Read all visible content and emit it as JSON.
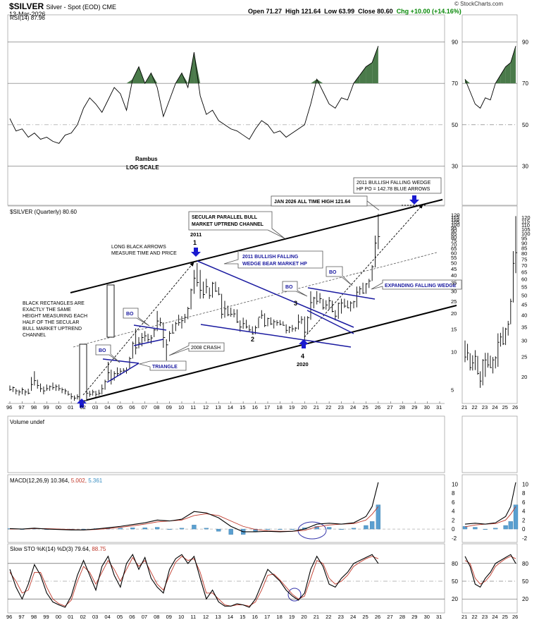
{
  "header": {
    "symbol": "$SILVER",
    "description": "Silver - Spot (EOD) CME",
    "date": "13-Mar-2026",
    "open": "Open 71.27",
    "high": "High 121.64",
    "low": "Low 63.99",
    "close": "Close 80.60",
    "chg": "Chg +10.00 (+14.16%)",
    "brand": "© StockCharts.com"
  },
  "chart_data": [
    {
      "type": "line",
      "panel": "rsi",
      "label": "RSI(14) 87.96",
      "ylim": [
        20,
        100
      ],
      "y_ticks": [
        30,
        50,
        70,
        90
      ],
      "x": [
        96,
        96.5,
        97,
        97.5,
        98,
        98.5,
        99,
        99.5,
        100,
        100.5,
        101,
        101.5,
        102,
        102.5,
        103,
        103.5,
        104,
        104.5,
        105,
        105.5,
        106,
        106.5,
        107,
        107.5,
        108,
        108.5,
        109,
        109.5,
        110,
        110.5,
        111,
        111.5,
        112,
        112.5,
        113,
        113.5,
        114,
        114.5,
        115,
        115.5,
        116,
        116.5,
        117,
        117.5,
        118,
        118.5,
        119,
        119.5,
        120,
        120.5,
        121,
        121.5,
        122,
        122.5,
        123,
        123.5,
        124,
        124.5,
        125,
        125.5,
        126
      ],
      "values": [
        53,
        47,
        48,
        44,
        46,
        43,
        44,
        42,
        41,
        45,
        46,
        50,
        58,
        63,
        60,
        56,
        62,
        68,
        65,
        57,
        72,
        78,
        70,
        75,
        68,
        54,
        62,
        70,
        75,
        68,
        85,
        64,
        55,
        57,
        52,
        50,
        48,
        47,
        45,
        43,
        48,
        52,
        50,
        46,
        47,
        44,
        46,
        48,
        50,
        60,
        72,
        66,
        60,
        58,
        63,
        62,
        70,
        74,
        78,
        80,
        88
      ],
      "bands": [
        30,
        70
      ],
      "midline": 50,
      "annotations": [
        "Rambus",
        "LOG SCALE"
      ]
    },
    {
      "type": "bar",
      "panel": "price",
      "label": "$SILVER (Quarterly) 80.60",
      "scale": "log",
      "ylim": [
        4,
        130
      ],
      "y_ticks": [
        5,
        10,
        15,
        20,
        25,
        30,
        35,
        40,
        45,
        50,
        55,
        60,
        65,
        70,
        75,
        80,
        85,
        90,
        95,
        100,
        105,
        110,
        115,
        120
      ],
      "x_ticks": [
        "96",
        "97",
        "98",
        "99",
        "00",
        "01",
        "02",
        "03",
        "04",
        "05",
        "06",
        "07",
        "08",
        "09",
        "10",
        "11",
        "12",
        "13",
        "14",
        "15",
        "16",
        "17",
        "18",
        "19",
        "20",
        "21",
        "22",
        "23",
        "24",
        "25",
        "26",
        "27",
        "28",
        "29",
        "30",
        "31"
      ],
      "bars": [
        [
          96.0,
          5.0,
          5.4,
          4.9
        ],
        [
          96.25,
          5.2,
          5.3,
          4.8
        ],
        [
          96.5,
          4.9,
          5.1,
          4.6
        ],
        [
          96.75,
          4.8,
          5.0,
          4.5
        ],
        [
          97.0,
          5.0,
          5.2,
          4.6
        ],
        [
          97.25,
          4.8,
          5.0,
          4.5
        ],
        [
          97.5,
          4.7,
          5.1,
          4.6
        ],
        [
          97.75,
          5.5,
          6.3,
          4.9
        ],
        [
          98.0,
          5.9,
          7.0,
          5.4
        ],
        [
          98.25,
          5.4,
          6.0,
          5.1
        ],
        [
          98.5,
          5.1,
          5.6,
          4.8
        ],
        [
          98.75,
          4.9,
          5.3,
          4.6
        ],
        [
          99.0,
          5.1,
          5.5,
          4.9
        ],
        [
          99.25,
          5.3,
          5.4,
          4.9
        ],
        [
          99.5,
          5.2,
          5.7,
          5.0
        ],
        [
          99.75,
          5.3,
          5.5,
          4.9
        ],
        [
          100.0,
          5.1,
          5.5,
          4.9
        ],
        [
          100.25,
          5.0,
          5.2,
          4.7
        ],
        [
          100.5,
          4.9,
          5.1,
          4.6
        ],
        [
          100.75,
          4.6,
          4.9,
          4.5
        ],
        [
          101.0,
          4.4,
          4.7,
          4.2
        ],
        [
          101.25,
          4.3,
          4.5,
          4.1
        ],
        [
          101.5,
          4.4,
          4.6,
          4.2
        ],
        [
          101.75,
          4.6,
          4.7,
          4.2
        ],
        [
          102.0,
          4.5,
          4.8,
          4.4
        ],
        [
          102.25,
          4.7,
          5.1,
          4.5
        ],
        [
          102.5,
          4.6,
          4.9,
          4.4
        ],
        [
          102.75,
          4.8,
          5.0,
          4.5
        ],
        [
          103.0,
          4.6,
          4.9,
          4.4
        ],
        [
          103.25,
          4.7,
          5.0,
          4.5
        ],
        [
          103.5,
          5.1,
          5.5,
          4.6
        ],
        [
          103.75,
          5.8,
          6.0,
          5.0
        ],
        [
          104.0,
          6.8,
          8.3,
          5.9
        ],
        [
          104.25,
          6.0,
          7.2,
          5.5
        ],
        [
          104.5,
          6.7,
          7.0,
          5.9
        ],
        [
          104.75,
          6.7,
          7.5,
          6.4
        ],
        [
          105.0,
          7.0,
          7.4,
          6.5
        ],
        [
          105.25,
          7.1,
          7.4,
          6.8
        ],
        [
          105.5,
          7.1,
          7.5,
          6.7
        ],
        [
          105.75,
          8.8,
          9.1,
          7.4
        ],
        [
          106.0,
          11.6,
          12.0,
          8.8
        ],
        [
          106.25,
          10.7,
          15.2,
          9.5
        ],
        [
          106.5,
          11.7,
          13.0,
          10.6
        ],
        [
          106.75,
          12.9,
          14.0,
          11.0
        ],
        [
          107.0,
          13.3,
          14.5,
          12.0
        ],
        [
          107.25,
          12.4,
          13.8,
          11.8
        ],
        [
          107.5,
          12.8,
          13.5,
          11.5
        ],
        [
          107.75,
          14.8,
          15.2,
          13.0
        ],
        [
          108.0,
          17.4,
          20.9,
          14.5
        ],
        [
          108.25,
          16.9,
          18.5,
          15.8
        ],
        [
          108.5,
          12.9,
          17.0,
          10.7
        ],
        [
          108.75,
          11.3,
          12.5,
          8.5
        ],
        [
          109.0,
          13.9,
          14.5,
          12.0
        ],
        [
          109.25,
          14.0,
          16.5,
          13.8
        ],
        [
          109.5,
          16.6,
          17.2,
          14.5
        ],
        [
          109.75,
          16.9,
          19.5,
          16.0
        ],
        [
          110.0,
          17.5,
          19.0,
          15.2
        ],
        [
          110.25,
          18.6,
          19.8,
          16.8
        ],
        [
          110.5,
          21.8,
          22.5,
          18.0
        ],
        [
          110.75,
          30.6,
          31.3,
          21.5
        ],
        [
          111.0,
          37.9,
          44.0,
          28.5
        ],
        [
          111.25,
          35.0,
          49.8,
          32.5
        ],
        [
          111.5,
          30.4,
          44.0,
          26.1
        ],
        [
          111.75,
          28.2,
          35.6,
          26.2
        ],
        [
          112.0,
          32.5,
          37.5,
          28.7
        ],
        [
          112.25,
          27.6,
          32.0,
          26.0
        ],
        [
          112.5,
          34.5,
          35.4,
          26.6
        ],
        [
          112.75,
          29.9,
          35.5,
          29.5
        ],
        [
          113.0,
          28.3,
          32.2,
          27.8
        ],
        [
          113.25,
          19.7,
          28.5,
          18.2
        ],
        [
          113.5,
          21.7,
          25.1,
          18.5
        ],
        [
          113.75,
          19.5,
          23.0,
          19.0
        ],
        [
          114.0,
          19.7,
          22.2,
          18.8
        ],
        [
          114.25,
          19.8,
          21.6,
          18.6
        ],
        [
          114.5,
          17.1,
          21.5,
          16.8
        ],
        [
          114.75,
          15.6,
          17.6,
          14.3
        ],
        [
          115.0,
          16.6,
          18.5,
          15.1
        ],
        [
          115.25,
          15.6,
          17.8,
          15.2
        ],
        [
          115.5,
          14.8,
          16.2,
          14.4
        ],
        [
          115.75,
          13.8,
          15.8,
          13.6
        ],
        [
          116.0,
          15.4,
          16.0,
          13.7
        ],
        [
          116.25,
          18.7,
          18.5,
          15.3
        ],
        [
          116.5,
          19.3,
          21.2,
          18.1
        ],
        [
          116.75,
          16.0,
          20.0,
          15.6
        ],
        [
          117.0,
          18.2,
          18.5,
          15.8
        ],
        [
          117.25,
          16.5,
          18.6,
          16.2
        ],
        [
          117.5,
          17.2,
          17.9,
          15.2
        ],
        [
          117.75,
          16.9,
          17.7,
          16.0
        ],
        [
          118.0,
          16.4,
          17.7,
          16.1
        ],
        [
          118.25,
          16.1,
          17.3,
          16.0
        ],
        [
          118.5,
          14.7,
          16.4,
          13.9
        ],
        [
          118.75,
          15.5,
          15.8,
          14.0
        ],
        [
          119.0,
          15.1,
          16.2,
          14.3
        ],
        [
          119.25,
          15.3,
          15.6,
          14.4
        ],
        [
          119.5,
          17.1,
          19.6,
          14.9
        ],
        [
          119.75,
          17.9,
          19.0,
          16.5
        ],
        [
          120.0,
          14.2,
          18.9,
          11.7
        ],
        [
          120.25,
          18.5,
          19.0,
          13.8
        ],
        [
          120.5,
          24.3,
          29.9,
          17.8
        ],
        [
          120.75,
          26.4,
          27.0,
          21.9
        ],
        [
          121.0,
          24.9,
          30.0,
          23.5
        ],
        [
          121.25,
          26.1,
          28.9,
          24.0
        ],
        [
          121.5,
          22.1,
          26.0,
          21.4
        ],
        [
          121.75,
          23.3,
          25.4,
          21.4
        ],
        [
          122.0,
          25.1,
          26.9,
          21.5
        ],
        [
          122.25,
          20.7,
          25.2,
          20.4
        ],
        [
          122.5,
          19.0,
          21.2,
          17.6
        ],
        [
          122.75,
          24.0,
          24.3,
          18.1
        ],
        [
          123.0,
          24.1,
          26.1,
          19.9
        ],
        [
          123.25,
          22.8,
          26.1,
          22.1
        ],
        [
          123.5,
          22.1,
          25.3,
          22.0
        ],
        [
          123.75,
          24.1,
          24.9,
          20.7
        ],
        [
          124.0,
          24.7,
          25.1,
          21.9
        ],
        [
          124.25,
          29.4,
          32.5,
          22.3
        ],
        [
          124.5,
          31.2,
          32.7,
          28.0
        ],
        [
          124.75,
          28.9,
          34.9,
          28.5
        ],
        [
          125.0,
          34.1,
          34.6,
          28.5
        ],
        [
          125.25,
          36.0,
          37.4,
          31.7
        ],
        [
          125.5,
          46.6,
          48.0,
          36.0
        ],
        [
          125.75,
          71.5,
          82.0,
          46.0
        ],
        [
          126.0,
          80.6,
          121.6,
          64.0
        ]
      ],
      "annotations": {
        "channel_box": "SECULAR PARALLEL BULL MARKET UPTREND CHANNEL",
        "ath_box": "JAN 2026 ALL TIME HIGH 121.64",
        "wedge2011_hp_box": "2011 BULLISH FALLING WEDGE HP PO = 142.78 BLUE ARROWS",
        "year_2011": "2011",
        "point_1": "1",
        "long_arrows": "LONG BLACK ARROWS MEASURE TIME AND PRICE",
        "wedge_box": "2011 BULLISH FALLING WEDGE BEAR MARKET HP",
        "black_rect": "BLACK RECTANGLES ARE EXACTLY THE SAME HEIGHT MEASURING EACH HALF OF THE SECULAR BULL MARKET UPTREND CHANNEL",
        "bo_1": "BO",
        "bo_2": "BO",
        "bo_3": "BO",
        "bo_4": "BO",
        "triangle": "TRIANGLE",
        "crash": "2008 CRASH",
        "point_2": "2",
        "point_3": "3",
        "point_4": "4",
        "year_2020": "2020",
        "expanding": "EXPANDING FALLING WEDGE"
      }
    },
    {
      "type": "line",
      "panel": "volume",
      "label": "Volume undef"
    },
    {
      "type": "line",
      "panel": "macd",
      "label_main": "MACD(12,26,9) 10.364,",
      "label_signal": "5.002,",
      "label_hist": "5.361",
      "ylim": [
        -2.5,
        11
      ],
      "y_ticks": [
        -2,
        0,
        2,
        4,
        6,
        8,
        10
      ],
      "x": [
        96,
        97,
        98,
        99,
        100,
        101,
        102,
        103,
        104,
        105,
        106,
        107,
        108,
        109,
        110,
        111,
        112,
        113,
        114,
        115,
        116,
        117,
        118,
        119,
        120,
        121,
        122,
        123,
        124,
        125,
        125.5,
        126
      ],
      "macd": [
        0.1,
        0,
        0.2,
        0,
        -0.1,
        -0.2,
        -0.2,
        0,
        0.3,
        0.6,
        1.0,
        1.4,
        2.0,
        1.8,
        2.2,
        3.9,
        3.6,
        2.5,
        0.6,
        -0.6,
        -0.6,
        -0.5,
        -0.6,
        -0.5,
        0,
        1.1,
        1.3,
        1.1,
        1.4,
        2.8,
        5.0,
        10.4
      ],
      "signal": [
        0,
        0,
        0.1,
        0.1,
        0,
        -0.1,
        -0.2,
        -0.1,
        0.1,
        0.4,
        0.7,
        1.1,
        1.6,
        1.8,
        2.0,
        3.0,
        3.4,
        3.0,
        1.8,
        0.6,
        -0.1,
        -0.4,
        -0.5,
        -0.5,
        -0.3,
        0.5,
        0.9,
        1.1,
        1.2,
        2.0,
        3.3,
        5.0
      ]
    },
    {
      "type": "line",
      "panel": "sto",
      "label_main": "Slow STO %K(14) %D(3) 79.64,",
      "label_d": "88.75",
      "ylim": [
        0,
        100
      ],
      "y_ticks": [
        20,
        50,
        80
      ],
      "x": [
        96,
        96.5,
        97,
        97.5,
        98,
        98.5,
        99,
        99.5,
        100,
        100.5,
        101,
        101.5,
        102,
        102.5,
        103,
        103.5,
        104,
        104.5,
        105,
        105.5,
        106,
        106.5,
        107,
        107.5,
        108,
        108.5,
        109,
        109.5,
        110,
        110.5,
        111,
        111.5,
        112,
        112.5,
        113,
        113.5,
        114,
        114.5,
        115,
        115.5,
        116,
        116.5,
        117,
        117.5,
        118,
        118.5,
        119,
        119.5,
        120,
        120.5,
        121,
        121.5,
        122,
        122.5,
        123,
        123.5,
        124,
        124.5,
        125,
        125.5,
        126
      ],
      "k": [
        70,
        40,
        20,
        45,
        78,
        60,
        30,
        15,
        10,
        6,
        25,
        60,
        85,
        60,
        35,
        75,
        92,
        60,
        40,
        80,
        95,
        70,
        90,
        55,
        40,
        30,
        70,
        88,
        95,
        80,
        92,
        55,
        20,
        35,
        15,
        8,
        8,
        12,
        10,
        6,
        20,
        45,
        70,
        60,
        50,
        35,
        25,
        18,
        30,
        70,
        92,
        75,
        45,
        40,
        55,
        65,
        80,
        85,
        90,
        95,
        80
      ],
      "d": [
        65,
        50,
        30,
        35,
        65,
        65,
        40,
        20,
        12,
        8,
        18,
        50,
        75,
        65,
        45,
        65,
        85,
        70,
        50,
        70,
        90,
        75,
        85,
        65,
        45,
        35,
        60,
        82,
        92,
        85,
        88,
        65,
        30,
        30,
        20,
        10,
        8,
        10,
        10,
        8,
        15,
        35,
        60,
        62,
        52,
        40,
        28,
        20,
        25,
        55,
        85,
        80,
        55,
        45,
        50,
        60,
        75,
        82,
        88,
        92,
        88
      ]
    }
  ]
}
